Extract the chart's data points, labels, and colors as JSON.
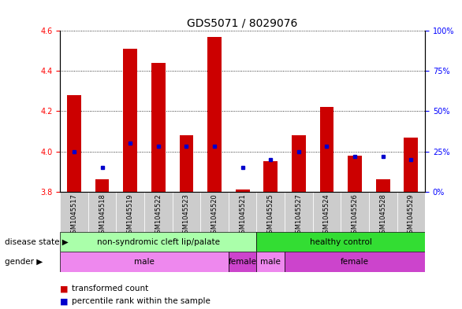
{
  "title": "GDS5071 / 8029076",
  "samples": [
    "GSM1045517",
    "GSM1045518",
    "GSM1045519",
    "GSM1045522",
    "GSM1045523",
    "GSM1045520",
    "GSM1045521",
    "GSM1045525",
    "GSM1045527",
    "GSM1045524",
    "GSM1045526",
    "GSM1045528",
    "GSM1045529"
  ],
  "transformed_count": [
    4.28,
    3.86,
    4.51,
    4.44,
    4.08,
    4.57,
    3.81,
    3.95,
    4.08,
    4.22,
    3.98,
    3.86,
    4.07
  ],
  "percentile_rank": [
    25,
    15,
    30,
    28,
    28,
    28,
    15,
    20,
    25,
    28,
    22,
    22,
    20
  ],
  "ylim_left": [
    3.8,
    4.6
  ],
  "ylim_right": [
    0,
    100
  ],
  "yticks_left": [
    3.8,
    4.0,
    4.2,
    4.4,
    4.6
  ],
  "yticks_right": [
    0,
    25,
    50,
    75,
    100
  ],
  "bar_color": "#cc0000",
  "dot_color": "#0000cc",
  "bar_bottom": 3.8,
  "disease_state_groups": [
    {
      "label": "non-syndromic cleft lip/palate",
      "start": 0,
      "end": 7,
      "color": "#aaffaa"
    },
    {
      "label": "healthy control",
      "start": 7,
      "end": 13,
      "color": "#33dd33"
    }
  ],
  "gender_groups": [
    {
      "label": "male",
      "start": 0,
      "end": 6,
      "color": "#ee88ee"
    },
    {
      "label": "female",
      "start": 6,
      "end": 7,
      "color": "#cc44cc"
    },
    {
      "label": "male",
      "start": 7,
      "end": 8,
      "color": "#ee88ee"
    },
    {
      "label": "female",
      "start": 8,
      "end": 13,
      "color": "#cc44cc"
    }
  ],
  "plot_bg": "#ffffff",
  "label_bg": "#cccccc",
  "title_fontsize": 10,
  "tick_fontsize": 7,
  "annotation_fontsize": 8
}
